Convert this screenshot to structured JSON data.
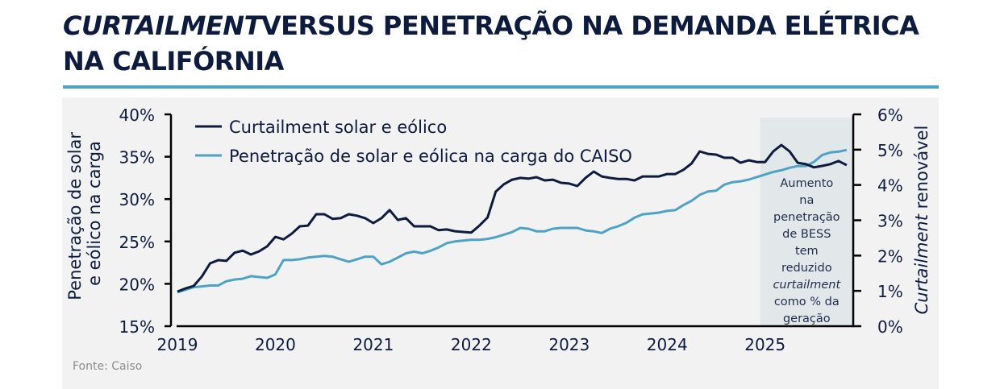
{
  "header": {
    "title_italic": "CURTAILMENT",
    "title_rest": "VERSUS PENETRAÇÃO NA DEMANDA ELÉTRICA NA CALIFÓRNIA"
  },
  "source": "Fonte: Caiso",
  "colors": {
    "curtailment": "#0d1b3e",
    "penetration": "#4ea3c4",
    "highlight": "#e2e7ea",
    "rule": "#4ea3c4"
  },
  "chart_data": {
    "type": "line",
    "title": "Curtailment versus penetração na demanda elétrica na Califórnia",
    "xlabel": "",
    "ylabel_left": "Penetração de solar e eólico na carga",
    "ylabel_right_italic": "Curtailment",
    "ylabel_right_rest": " renovável",
    "x_ticks": [
      "2019",
      "2020",
      "2021",
      "2022",
      "2023",
      "2024",
      "2025"
    ],
    "x_range": [
      2019.0,
      2025.9
    ],
    "ylim_left": [
      15,
      40
    ],
    "yticks_left": [
      "15%",
      "20%",
      "25%",
      "30%",
      "35%",
      "40%"
    ],
    "ylim_right": [
      0,
      6
    ],
    "yticks_right": [
      "0%",
      "1%",
      "2%",
      "3%",
      "4%",
      "5%",
      "6%"
    ],
    "legend": "top-left",
    "grid": false,
    "annotation": {
      "x_start": 2024.95,
      "x_end": 2025.9,
      "lines": [
        "Aumento",
        "na",
        "penetração",
        "de BESS",
        "tem",
        "reduzido",
        "curtailment",
        "como % da",
        "geração"
      ],
      "italic_line": 6
    },
    "series": [
      {
        "name": "Curtailment solar e eólico",
        "axis": "right",
        "start": "2019-01",
        "step": "month",
        "values": [
          0.98,
          1.07,
          1.14,
          1.41,
          1.78,
          1.87,
          1.85,
          2.08,
          2.14,
          2.03,
          2.12,
          2.26,
          2.53,
          2.46,
          2.62,
          2.83,
          2.85,
          3.17,
          3.17,
          3.04,
          3.06,
          3.17,
          3.13,
          3.06,
          2.92,
          3.06,
          3.29,
          3.01,
          3.06,
          2.83,
          2.83,
          2.83,
          2.72,
          2.74,
          2.69,
          2.67,
          2.65,
          2.85,
          3.08,
          3.81,
          4.02,
          4.15,
          4.2,
          4.18,
          4.22,
          4.13,
          4.15,
          4.06,
          4.04,
          3.97,
          4.2,
          4.38,
          4.24,
          4.2,
          4.17,
          4.17,
          4.13,
          4.24,
          4.24,
          4.24,
          4.31,
          4.31,
          4.43,
          4.61,
          4.95,
          4.88,
          4.86,
          4.77,
          4.77,
          4.63,
          4.7,
          4.65,
          4.65,
          4.95,
          5.13,
          4.95,
          4.63,
          4.59,
          4.5,
          4.54,
          4.59,
          4.68,
          4.56
        ]
      },
      {
        "name": "Penetração de solar e eólica na carga do CAISO",
        "axis": "left",
        "start": "2019-01",
        "step": "month",
        "values": [
          19.0,
          19.3,
          19.6,
          19.7,
          19.8,
          19.8,
          20.3,
          20.5,
          20.6,
          20.9,
          20.8,
          20.7,
          21.1,
          22.8,
          22.8,
          22.9,
          23.1,
          23.2,
          23.3,
          23.2,
          22.9,
          22.6,
          22.9,
          23.2,
          23.2,
          22.3,
          22.6,
          23.1,
          23.6,
          23.8,
          23.6,
          23.9,
          24.3,
          24.8,
          25.0,
          25.1,
          25.2,
          25.2,
          25.3,
          25.5,
          25.8,
          26.1,
          26.6,
          26.5,
          26.2,
          26.2,
          26.5,
          26.6,
          26.6,
          26.6,
          26.3,
          26.2,
          26.0,
          26.5,
          26.8,
          27.2,
          27.8,
          28.2,
          28.3,
          28.4,
          28.6,
          28.7,
          29.3,
          29.8,
          30.5,
          30.9,
          31.0,
          31.7,
          32.0,
          32.1,
          32.3,
          32.6,
          32.9,
          33.2,
          33.4,
          33.7,
          33.9,
          33.9,
          34.4,
          35.2,
          35.5,
          35.6,
          35.8
        ]
      }
    ]
  }
}
